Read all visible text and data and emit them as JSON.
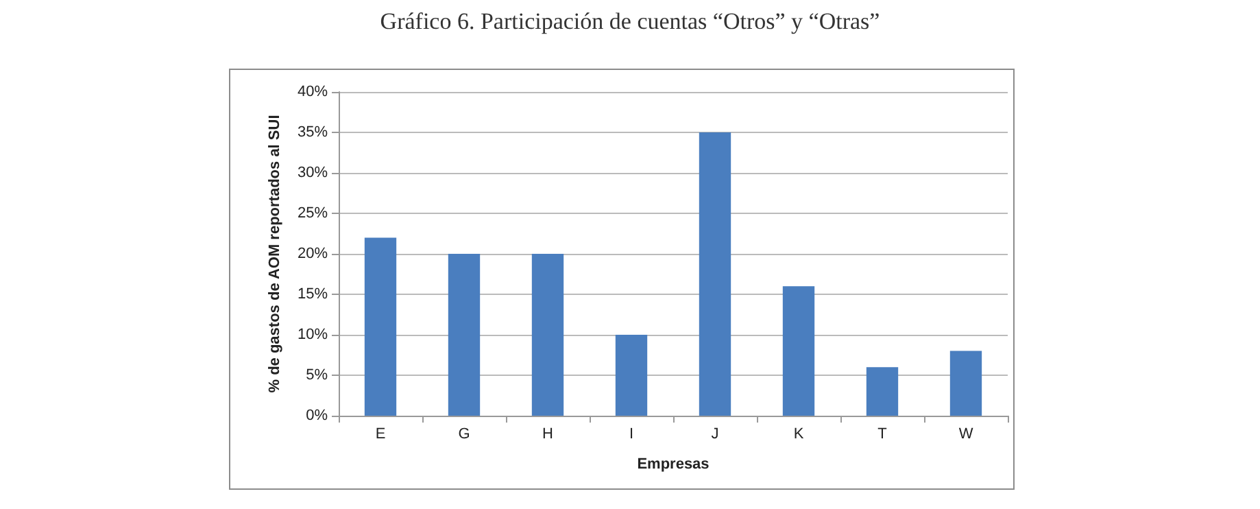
{
  "chart_data": {
    "type": "bar",
    "title": "Gráfico 6. Participación de cuentas “Otros” y “Otras”",
    "xlabel": "Empresas",
    "ylabel": "% de gastos de AOM reportados al SUI",
    "categories": [
      "E",
      "G",
      "H",
      "I",
      "J",
      "K",
      "T",
      "W"
    ],
    "values": [
      22,
      20,
      20,
      10,
      35,
      16,
      6,
      8
    ],
    "color": "#4a7ebf",
    "ylim": [
      0,
      40
    ],
    "yticks": [
      {
        "value": 0,
        "label": "0%"
      },
      {
        "value": 5,
        "label": "5%"
      },
      {
        "value": 10,
        "label": "10%"
      },
      {
        "value": 15,
        "label": "15%"
      },
      {
        "value": 20,
        "label": "20%"
      },
      {
        "value": 25,
        "label": "25%"
      },
      {
        "value": 30,
        "label": "30%"
      },
      {
        "value": 35,
        "label": "35%"
      },
      {
        "value": 40,
        "label": "40%"
      }
    ],
    "grid": "y"
  }
}
